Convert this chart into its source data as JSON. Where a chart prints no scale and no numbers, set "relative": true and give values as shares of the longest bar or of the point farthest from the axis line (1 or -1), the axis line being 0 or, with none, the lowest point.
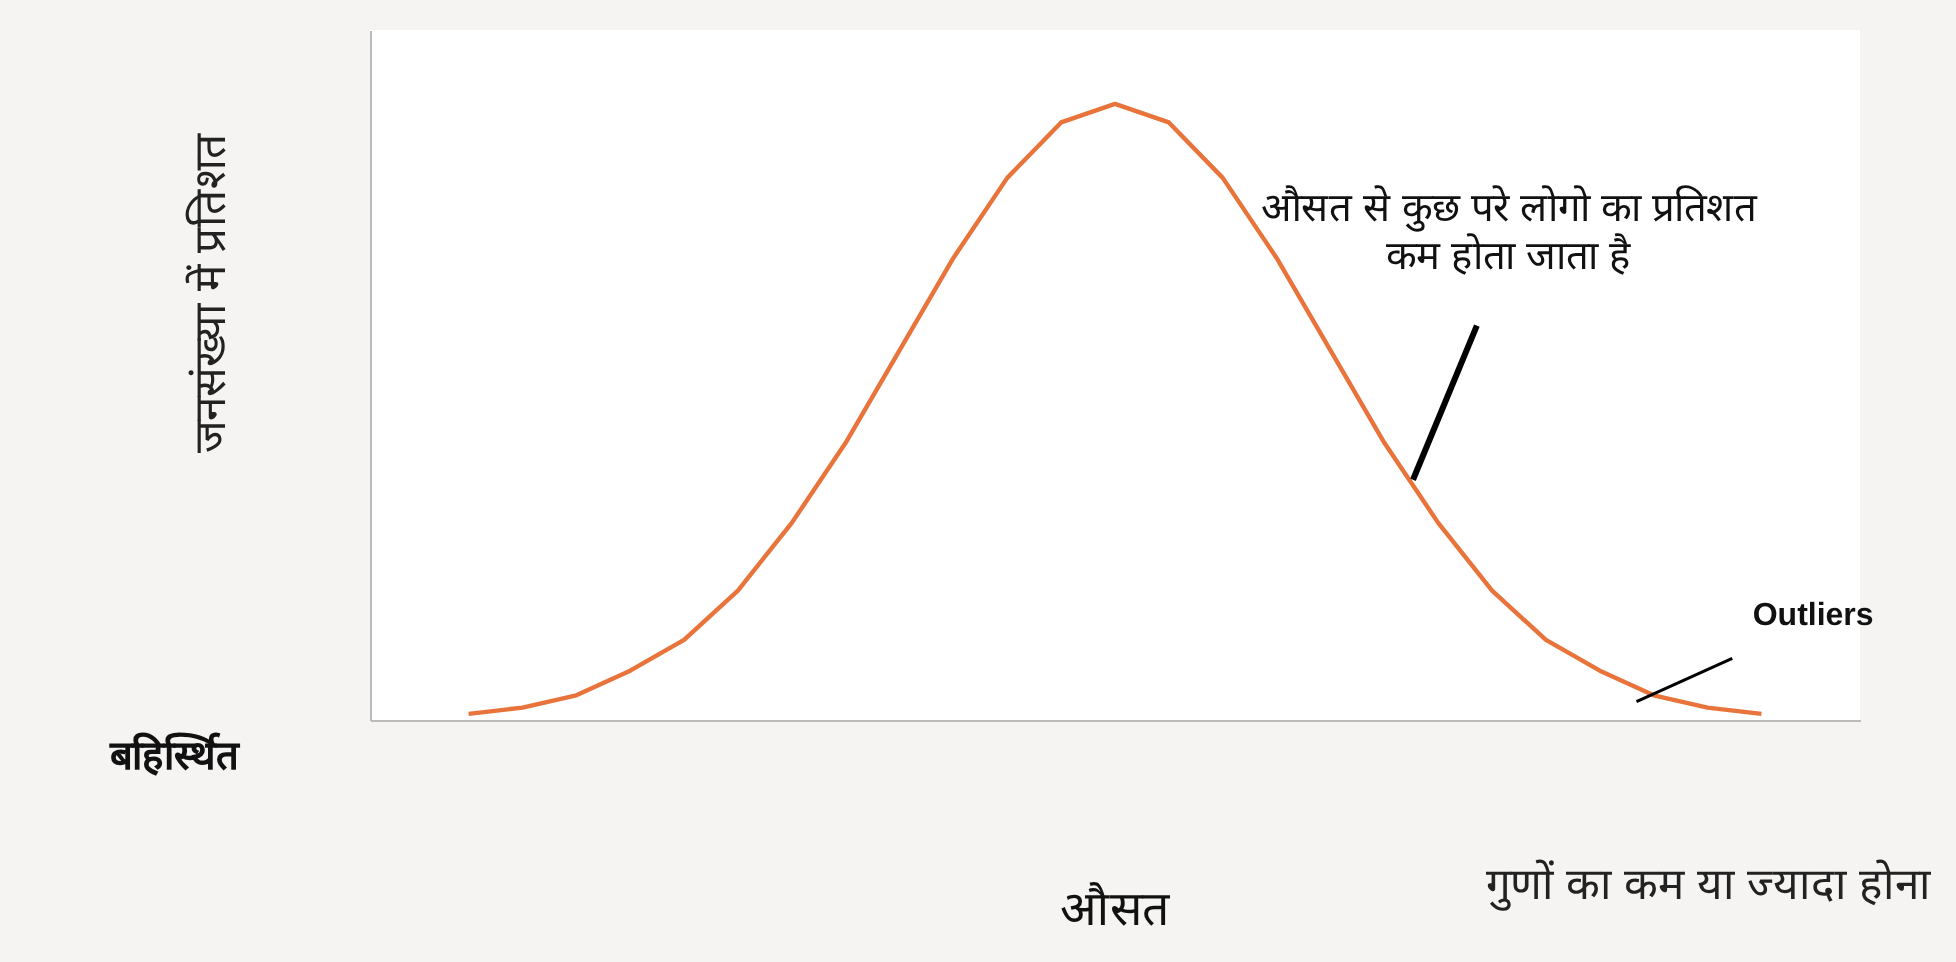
{
  "chart_data": {
    "type": "line",
    "relative": true,
    "ylabel": "जनसंख्या में प्रतिशत",
    "xlabel": "गुणों का कम या ज्यादा होना",
    "categories": [
      null,
      null,
      null,
      null,
      null,
      null,
      null,
      null,
      null,
      null,
      null,
      null,
      null,
      null,
      null,
      null,
      null,
      null,
      null,
      null,
      null,
      null,
      null,
      null,
      null
    ],
    "series": [
      {
        "color": "#e8743b",
        "values": [
          0.01,
          0.02,
          0.04,
          0.08,
          0.13,
          0.21,
          0.32,
          0.45,
          0.6,
          0.75,
          0.88,
          0.97,
          1,
          0.97,
          0.88,
          0.75,
          0.6,
          0.45,
          0.32,
          0.21,
          0.13,
          0.08,
          0.04,
          0.02,
          0.01
        ]
      }
    ],
    "annotations": [
      "औसत से कुछ परे लोगो का प्रतिशत\nकम होता जाता है",
      "Outliers",
      "बहिर्स्थित",
      "औसत"
    ]
  }
}
